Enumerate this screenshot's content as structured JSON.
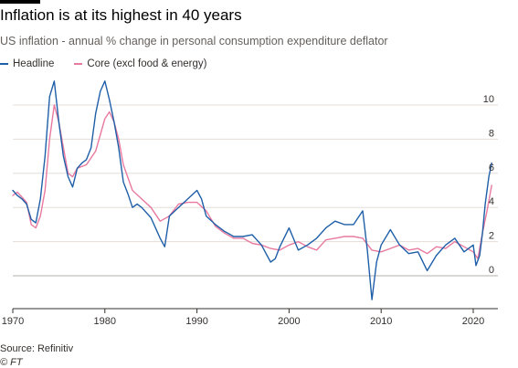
{
  "header": {
    "title": "Inflation is at its highest in 40 years",
    "subtitle": "US inflation - annual % change in personal consumption expenditure deflator"
  },
  "legend": {
    "headline_label": "Headline",
    "core_label": "Core (excl food & energy)"
  },
  "footer": {
    "source": "Source: Refinitiv",
    "credit": "© FT"
  },
  "colors": {
    "headline": "#1f5fa8",
    "core": "#e87aa0",
    "grid": "#e3ddd7",
    "zero_line": "#b6b0ab"
  },
  "chart_data": {
    "type": "line",
    "title": "Inflation is at its highest in 40 years",
    "subtitle": "US inflation - annual % change in personal consumption expenditure deflator",
    "xlabel": "",
    "ylabel": "",
    "xlim": [
      1970,
      2022
    ],
    "ylim": [
      -1.5,
      11.5
    ],
    "x_ticks": [
      1970,
      1980,
      1990,
      2000,
      2010,
      2020
    ],
    "y_ticks": [
      0,
      2,
      4,
      6,
      8,
      10
    ],
    "grid": true,
    "y_axis_side": "right",
    "legend_position": "top-left",
    "series": [
      {
        "name": "Headline",
        "x": [
          1970,
          1970.5,
          1971,
          1971.5,
          1972,
          1972.5,
          1973,
          1973.5,
          1974,
          1974.5,
          1975,
          1975.5,
          1976,
          1976.5,
          1977,
          1977.5,
          1978,
          1978.5,
          1979,
          1979.5,
          1980,
          1980.5,
          1981,
          1981.5,
          1982,
          1982.5,
          1983,
          1983.5,
          1984,
          1985,
          1986,
          1986.5,
          1987,
          1988,
          1989,
          1990,
          1990.5,
          1991,
          1992,
          1993,
          1994,
          1995,
          1996,
          1997,
          1998,
          1998.5,
          1999,
          2000,
          2001,
          2002,
          2003,
          2004,
          2005,
          2006,
          2007,
          2008,
          2008.5,
          2009,
          2009.5,
          2010,
          2011,
          2012,
          2013,
          2014,
          2015,
          2016,
          2017,
          2018,
          2019,
          2020,
          2020.3,
          2020.7,
          2021,
          2021.3,
          2021.7,
          2022
        ],
        "values": [
          5.0,
          4.7,
          4.5,
          4.2,
          3.3,
          3.1,
          4.5,
          7.0,
          10.5,
          11.4,
          9.0,
          7.0,
          5.8,
          5.2,
          6.3,
          6.6,
          6.8,
          7.5,
          9.5,
          10.8,
          11.4,
          10.3,
          9.0,
          7.5,
          5.5,
          4.8,
          4.0,
          4.2,
          4.0,
          3.4,
          2.2,
          1.7,
          3.5,
          4.0,
          4.5,
          5.0,
          4.5,
          3.5,
          3.0,
          2.6,
          2.3,
          2.3,
          2.4,
          1.8,
          0.8,
          1.0,
          1.7,
          2.8,
          1.5,
          1.8,
          2.2,
          2.8,
          3.2,
          3.0,
          3.0,
          3.8,
          1.5,
          -1.4,
          0.8,
          1.8,
          2.7,
          1.8,
          1.3,
          1.4,
          0.3,
          1.2,
          1.8,
          2.2,
          1.4,
          1.8,
          0.6,
          1.2,
          2.5,
          4.2,
          5.8,
          6.6
        ]
      },
      {
        "name": "Core (excl food & energy)",
        "x": [
          1970,
          1970.5,
          1971,
          1971.5,
          1972,
          1972.5,
          1973,
          1973.5,
          1974,
          1974.5,
          1975,
          1975.5,
          1976,
          1976.5,
          1977,
          1978,
          1979,
          1980,
          1980.5,
          1981,
          1981.5,
          1982,
          1983,
          1984,
          1985,
          1986,
          1987,
          1988,
          1989,
          1990,
          1991,
          1992,
          1993,
          1994,
          1995,
          1996,
          1997,
          1998,
          1999,
          2000,
          2001,
          2002,
          2003,
          2004,
          2005,
          2006,
          2007,
          2008,
          2009,
          2010,
          2011,
          2012,
          2013,
          2014,
          2015,
          2016,
          2017,
          2018,
          2019,
          2020,
          2020.5,
          2021,
          2021.5,
          2022
        ],
        "values": [
          4.7,
          4.9,
          4.6,
          4.3,
          3.0,
          2.8,
          3.5,
          5.0,
          8.0,
          10.0,
          9.0,
          7.5,
          6.0,
          5.8,
          6.3,
          6.5,
          7.3,
          9.2,
          9.6,
          9.0,
          8.0,
          6.5,
          5.0,
          4.5,
          4.0,
          3.2,
          3.5,
          4.2,
          4.3,
          4.3,
          3.8,
          2.9,
          2.5,
          2.2,
          2.2,
          1.9,
          1.8,
          1.6,
          1.5,
          1.8,
          2.0,
          1.7,
          1.5,
          2.1,
          2.2,
          2.3,
          2.3,
          2.2,
          1.5,
          1.4,
          1.6,
          1.8,
          1.5,
          1.6,
          1.3,
          1.7,
          1.6,
          2.0,
          1.7,
          1.4,
          1.0,
          2.5,
          3.8,
          5.3
        ]
      }
    ]
  }
}
